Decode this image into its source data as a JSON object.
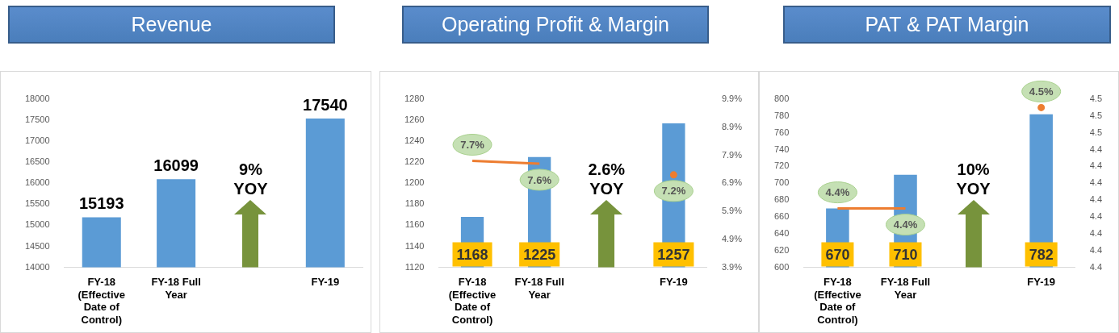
{
  "chart_data": [
    {
      "type": "bar",
      "title": "Revenue",
      "categories": [
        "FY-18 (Effective Date of Control)",
        "FY-18 Full Year",
        null,
        "FY-19"
      ],
      "series": [
        {
          "color": "#5b9bd5",
          "values": [
            15193,
            16099,
            null,
            17540
          ],
          "value_labels": [
            "15193",
            "16099",
            null,
            "17540"
          ]
        }
      ],
      "ylim": [
        14000,
        18000
      ],
      "yticks": [
        14000,
        14500,
        15000,
        15500,
        16000,
        16500,
        17000,
        17500,
        18000
      ],
      "grid": false,
      "legend": false,
      "annotations": [
        "9% YOY"
      ]
    },
    {
      "type": "bar",
      "title": "Operating Profit & Margin",
      "categories": [
        "FY-18 (Effective Date of Control)",
        "FY-18 Full Year",
        null,
        "FY-19"
      ],
      "series": [
        {
          "color": "#5b9bd5",
          "values": [
            1168,
            1225,
            null,
            1257
          ],
          "value_labels": [
            "1168",
            "1225",
            null,
            "1257"
          ]
        },
        {
          "type": "line",
          "axis": "y2",
          "color": "#ed7d31",
          "values": [
            7.7,
            7.6,
            null,
            7.2
          ],
          "value_labels": [
            "7.7%",
            "7.6%",
            null,
            "7.2%"
          ]
        }
      ],
      "ylim": [
        1120,
        1280
      ],
      "yticks": [
        1120,
        1140,
        1160,
        1180,
        1200,
        1220,
        1240,
        1260,
        1280
      ],
      "y2lim": [
        3.9,
        9.9
      ],
      "y2ticks": [
        {
          "value": 3.9,
          "label": "3.9%"
        },
        {
          "value": 4.9,
          "label": "4.9%"
        },
        {
          "value": 5.9,
          "label": "5.9%"
        },
        {
          "value": 6.9,
          "label": "6.9%"
        },
        {
          "value": 7.9,
          "label": "7.9%"
        },
        {
          "value": 8.9,
          "label": "8.9%"
        },
        {
          "value": 9.9,
          "label": "9.9%"
        }
      ],
      "grid": false,
      "legend": false,
      "marker": "none",
      "annotations": [
        "2.6% YOY"
      ]
    },
    {
      "type": "bar",
      "title": "PAT  &  PAT Margin",
      "categories": [
        "FY-18 (Effective Date of Control)",
        "FY-18 Full Year",
        null,
        "FY-19"
      ],
      "series": [
        {
          "color": "#5b9bd5",
          "values": [
            670,
            710,
            null,
            782
          ],
          "value_labels": [
            "670",
            "710",
            null,
            "782"
          ]
        },
        {
          "type": "line",
          "axis": "y2",
          "color": "#ed7d31",
          "values": [
            4.41,
            4.41,
            null,
            4.47
          ],
          "value_labels": [
            "4.4%",
            "4.4%",
            null,
            "4.5%"
          ]
        }
      ],
      "ylim": [
        600,
        800
      ],
      "yticks": [
        600,
        620,
        640,
        660,
        680,
        700,
        720,
        740,
        760,
        780,
        800
      ],
      "y2lim": [
        4.375,
        4.475
      ],
      "y2ticks": [
        {
          "value": 4.375,
          "label": "4.4"
        },
        {
          "value": 4.385,
          "label": "4.4"
        },
        {
          "value": 4.395,
          "label": "4.4"
        },
        {
          "value": 4.405,
          "label": "4.4"
        },
        {
          "value": 4.415,
          "label": "4.4"
        },
        {
          "value": 4.425,
          "label": "4.4"
        },
        {
          "value": 4.435,
          "label": "4.4"
        },
        {
          "value": 4.445,
          "label": "4.4"
        },
        {
          "value": 4.455,
          "label": "4.5"
        },
        {
          "value": 4.465,
          "label": "4.5"
        },
        {
          "value": 4.475,
          "label": "4.5"
        }
      ],
      "grid": false,
      "legend": false,
      "marker": "none",
      "annotations": [
        "10% YOY"
      ]
    }
  ]
}
